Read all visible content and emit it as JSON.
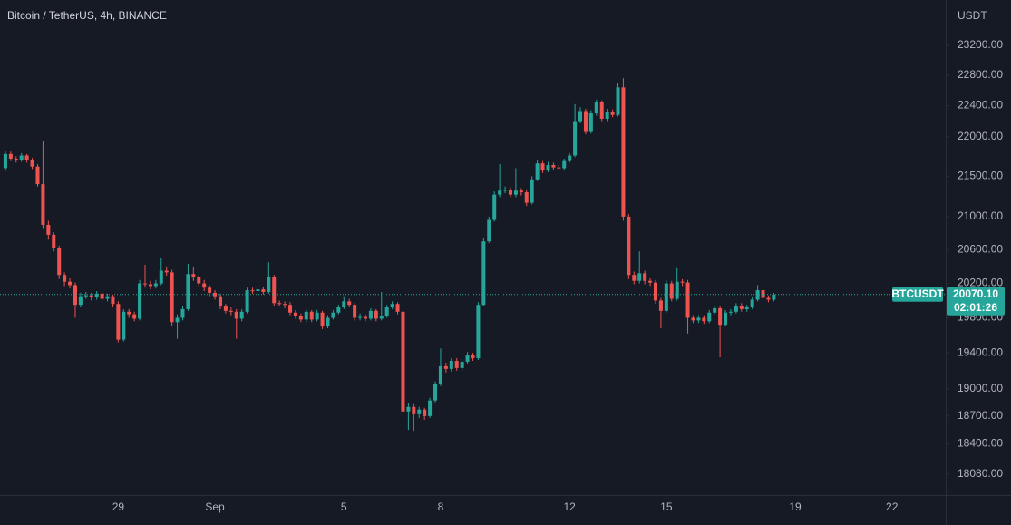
{
  "chart_data": {
    "type": "candlestick",
    "title": "Bitcoin / TetherUS, 4h, BINANCE",
    "y_axis_label": "USDT",
    "symbol": "BTCUSDT",
    "countdown": "02:01:26",
    "last_price": {
      "value": 20070.1,
      "label": "20070.10"
    },
    "log_scale": true,
    "grid": false,
    "up_color": "#26a69a",
    "down_color": "#ef5350",
    "ylim": [
      17860,
      23820
    ],
    "yticks": [
      {
        "value": 23200,
        "label": "23200.00"
      },
      {
        "value": 22800,
        "label": "22800.00"
      },
      {
        "value": 22400,
        "label": "22400.00"
      },
      {
        "value": 22000,
        "label": "22000.00"
      },
      {
        "value": 21500,
        "label": "21500.00"
      },
      {
        "value": 21000,
        "label": "21000.00"
      },
      {
        "value": 20600,
        "label": "20600.00"
      },
      {
        "value": 20200,
        "label": "20200.00"
      },
      {
        "value": 19800,
        "label": "19800.00"
      },
      {
        "value": 19400,
        "label": "19400.00"
      },
      {
        "value": 19000,
        "label": "19000.00"
      },
      {
        "value": 18700,
        "label": "18700.00"
      },
      {
        "value": 18400,
        "label": "18400.00"
      },
      {
        "value": 18080,
        "label": "18080.00"
      }
    ],
    "categories": [
      null,
      null,
      null,
      null,
      null,
      null,
      null,
      null,
      null,
      null,
      null,
      null,
      null,
      null,
      null,
      null,
      null,
      null,
      null,
      null,
      null,
      "29",
      null,
      null,
      null,
      null,
      null,
      null,
      null,
      null,
      null,
      null,
      null,
      null,
      null,
      null,
      null,
      null,
      null,
      "Sep",
      null,
      null,
      null,
      null,
      null,
      null,
      null,
      null,
      null,
      null,
      null,
      null,
      null,
      null,
      null,
      null,
      null,
      null,
      null,
      null,
      null,
      null,
      null,
      "5",
      null,
      null,
      null,
      null,
      null,
      null,
      null,
      null,
      null,
      null,
      null,
      null,
      null,
      null,
      null,
      null,
      null,
      "8",
      null,
      null,
      null,
      null,
      null,
      null,
      null,
      null,
      null,
      null,
      null,
      null,
      null,
      null,
      null,
      null,
      null,
      null,
      null,
      null,
      null,
      null,
      null,
      "12",
      null,
      null,
      null,
      null,
      null,
      null,
      null,
      null,
      null,
      null,
      null,
      null,
      null,
      null,
      null,
      null,
      null,
      "15",
      null,
      null,
      null,
      null,
      null,
      null,
      null,
      null,
      null,
      null,
      null,
      null,
      null,
      null,
      null,
      null,
      null,
      null,
      null,
      null,
      null,
      null,
      null,
      "19",
      null,
      null,
      null,
      null,
      null,
      null,
      null,
      null,
      null,
      null,
      null,
      null,
      null,
      null,
      null,
      null,
      null,
      "22",
      null,
      null,
      null,
      null,
      null,
      null,
      null,
      null,
      null
    ],
    "open": [
      21600,
      21780,
      21720,
      21700,
      21760,
      21700,
      21620,
      21400,
      20900,
      20780,
      20620,
      20300,
      20220,
      20180,
      19950,
      20050,
      20060,
      20040,
      20080,
      20020,
      20050,
      19960,
      19550,
      19870,
      19840,
      19790,
      20200,
      20190,
      20170,
      20200,
      20350,
      20330,
      19750,
      19800,
      19900,
      20310,
      20270,
      20200,
      20150,
      20090,
      20050,
      19930,
      19880,
      19870,
      19790,
      19870,
      20120,
      20110,
      20130,
      20100,
      20280,
      19970,
      19960,
      19950,
      19860,
      19820,
      19780,
      19870,
      19780,
      19860,
      19700,
      19800,
      19860,
      19920,
      19990,
      19950,
      19800,
      19810,
      19790,
      19880,
      19790,
      19820,
      19920,
      19960,
      19870,
      18750,
      18800,
      18720,
      18770,
      18700,
      18870,
      19050,
      19250,
      19220,
      19310,
      19230,
      19300,
      19380,
      19340,
      19950,
      20700,
      20960,
      21270,
      21320,
      21330,
      21270,
      21320,
      21300,
      21170,
      21460,
      21660,
      21570,
      21640,
      21610,
      21600,
      21690,
      21760,
      22200,
      22330,
      22060,
      22300,
      22450,
      22230,
      22320,
      22280,
      22640,
      21000,
      20300,
      20230,
      20320,
      20230,
      20210,
      20000,
      19880,
      20200,
      20020,
      20220,
      20210,
      19800,
      19770,
      19800,
      19760,
      19860,
      19910,
      19720,
      19860,
      19870,
      19940,
      19900,
      19920,
      20010,
      20120,
      20030,
      20010,
      null,
      null,
      null,
      null,
      null,
      null,
      null,
      null,
      null,
      null,
      null,
      null,
      null,
      null,
      null,
      null,
      null,
      null,
      null,
      null,
      null,
      null,
      null,
      null,
      null,
      null,
      null,
      null,
      null,
      null,
      null
    ],
    "high": [
      21820,
      21810,
      21750,
      21790,
      21780,
      21730,
      21650,
      21950,
      20950,
      20810,
      20650,
      20330,
      20260,
      20210,
      20090,
      20100,
      20090,
      20110,
      20110,
      20080,
      20070,
      19990,
      19900,
      19900,
      19870,
      20240,
      20420,
      20230,
      20240,
      20500,
      20400,
      20360,
      19840,
      19940,
      20430,
      20400,
      20300,
      20240,
      20180,
      20120,
      20080,
      19960,
      19920,
      19900,
      19900,
      20150,
      20150,
      20160,
      20160,
      20450,
      20300,
      20000,
      19990,
      19980,
      19890,
      19850,
      19900,
      19890,
      19890,
      19880,
      19830,
      19890,
      19950,
      20050,
      20020,
      19970,
      19850,
      19840,
      19910,
      19900,
      20100,
      19950,
      19990,
      19980,
      19890,
      18840,
      18830,
      18800,
      18790,
      18900,
      19080,
      19450,
      19290,
      19340,
      19340,
      19330,
      19410,
      19400,
      19980,
      20740,
      21000,
      21310,
      21650,
      21370,
      21360,
      21600,
      21350,
      21330,
      21500,
      21700,
      21690,
      21680,
      21670,
      21640,
      21720,
      21790,
      22420,
      22380,
      22360,
      22340,
      22480,
      22470,
      22360,
      22350,
      22700,
      22760,
      21030,
      20340,
      20580,
      20350,
      20260,
      20240,
      20030,
      20240,
      20230,
      20380,
      20250,
      20240,
      19830,
      19830,
      19830,
      19890,
      19940,
      19930,
      19890,
      19900,
      19970,
      19970,
      19950,
      20040,
      20180,
      20150,
      20060,
      20090,
      null,
      null,
      null,
      null,
      null,
      null,
      null,
      null,
      null,
      null,
      null,
      null,
      null,
      null,
      null,
      null,
      null,
      null,
      null,
      null,
      null,
      null,
      null,
      null,
      null,
      null,
      null,
      null,
      null,
      null,
      null
    ],
    "low": [
      21560,
      21690,
      21670,
      21680,
      21670,
      21590,
      21370,
      20850,
      20720,
      20580,
      20250,
      20170,
      20140,
      19800,
      19920,
      20020,
      20000,
      20010,
      19990,
      19990,
      19920,
      19520,
      19530,
      19800,
      19760,
      19770,
      20150,
      20130,
      20140,
      20180,
      20290,
      19710,
      19560,
      19770,
      19880,
      20230,
      20160,
      20110,
      20050,
      20010,
      19900,
      19850,
      19830,
      19560,
      19760,
      19850,
      20080,
      20080,
      20070,
      20080,
      19940,
      19930,
      19910,
      19830,
      19790,
      19750,
      19750,
      19750,
      19760,
      19670,
      19680,
      19780,
      19840,
      19900,
      19920,
      19770,
      19770,
      19760,
      19770,
      19760,
      19770,
      19800,
      19900,
      19840,
      18700,
      18550,
      18540,
      18680,
      18660,
      18680,
      18850,
      19030,
      19180,
      19190,
      19200,
      19200,
      19280,
      19310,
      19320,
      19930,
      20680,
      20940,
      21240,
      21290,
      21240,
      21240,
      21260,
      21130,
      21150,
      21440,
      21540,
      21550,
      21580,
      21570,
      21580,
      21670,
      21740,
      22170,
      22030,
      22040,
      22270,
      22200,
      22200,
      22250,
      22260,
      20950,
      20250,
      20190,
      20200,
      20190,
      20170,
      19960,
      19680,
      19860,
      19990,
      20000,
      20170,
      19620,
      19740,
      19740,
      19730,
      19740,
      19840,
      19350,
      19700,
      19830,
      19850,
      19870,
      19870,
      19900,
      19990,
      20000,
      19980,
      19990,
      null,
      null,
      null,
      null,
      null,
      null,
      null,
      null,
      null,
      null,
      null,
      null,
      null,
      null,
      null,
      null,
      null,
      null,
      null,
      null,
      null,
      null,
      null,
      null,
      null,
      null,
      null,
      null,
      null,
      null,
      null
    ],
    "close": [
      21780,
      21720,
      21700,
      21760,
      21700,
      21620,
      21400,
      20900,
      20780,
      20620,
      20300,
      20220,
      20180,
      19950,
      20050,
      20060,
      20040,
      20080,
      20020,
      20050,
      19960,
      19550,
      19870,
      19840,
      19790,
      20200,
      20190,
      20170,
      20200,
      20350,
      20330,
      19750,
      19800,
      19900,
      20310,
      20270,
      20200,
      20150,
      20090,
      20050,
      19930,
      19880,
      19870,
      19790,
      19870,
      20120,
      20110,
      20130,
      20100,
      20280,
      19970,
      19960,
      19950,
      19860,
      19820,
      19780,
      19870,
      19780,
      19860,
      19700,
      19800,
      19860,
      19920,
      19990,
      19950,
      19800,
      19810,
      19790,
      19880,
      19790,
      19820,
      19920,
      19960,
      19870,
      18750,
      18800,
      18720,
      18770,
      18700,
      18870,
      19050,
      19250,
      19220,
      19310,
      19230,
      19300,
      19380,
      19340,
      19950,
      20700,
      20960,
      21270,
      21320,
      21330,
      21270,
      21320,
      21300,
      21170,
      21460,
      21660,
      21570,
      21640,
      21610,
      21600,
      21690,
      21760,
      22200,
      22330,
      22060,
      22300,
      22450,
      22230,
      22320,
      22280,
      22640,
      21000,
      20300,
      20230,
      20320,
      20230,
      20210,
      20000,
      19880,
      20200,
      20020,
      20220,
      20210,
      19800,
      19770,
      19800,
      19760,
      19860,
      19910,
      19720,
      19860,
      19870,
      19940,
      19900,
      19920,
      20010,
      20120,
      20030,
      20010,
      20070.1,
      null,
      null,
      null,
      null,
      null,
      null,
      null,
      null,
      null,
      null,
      null,
      null,
      null,
      null,
      null,
      null,
      null,
      null,
      null,
      null,
      null,
      null,
      null,
      null,
      null,
      null,
      null,
      null,
      null,
      null,
      null
    ]
  }
}
